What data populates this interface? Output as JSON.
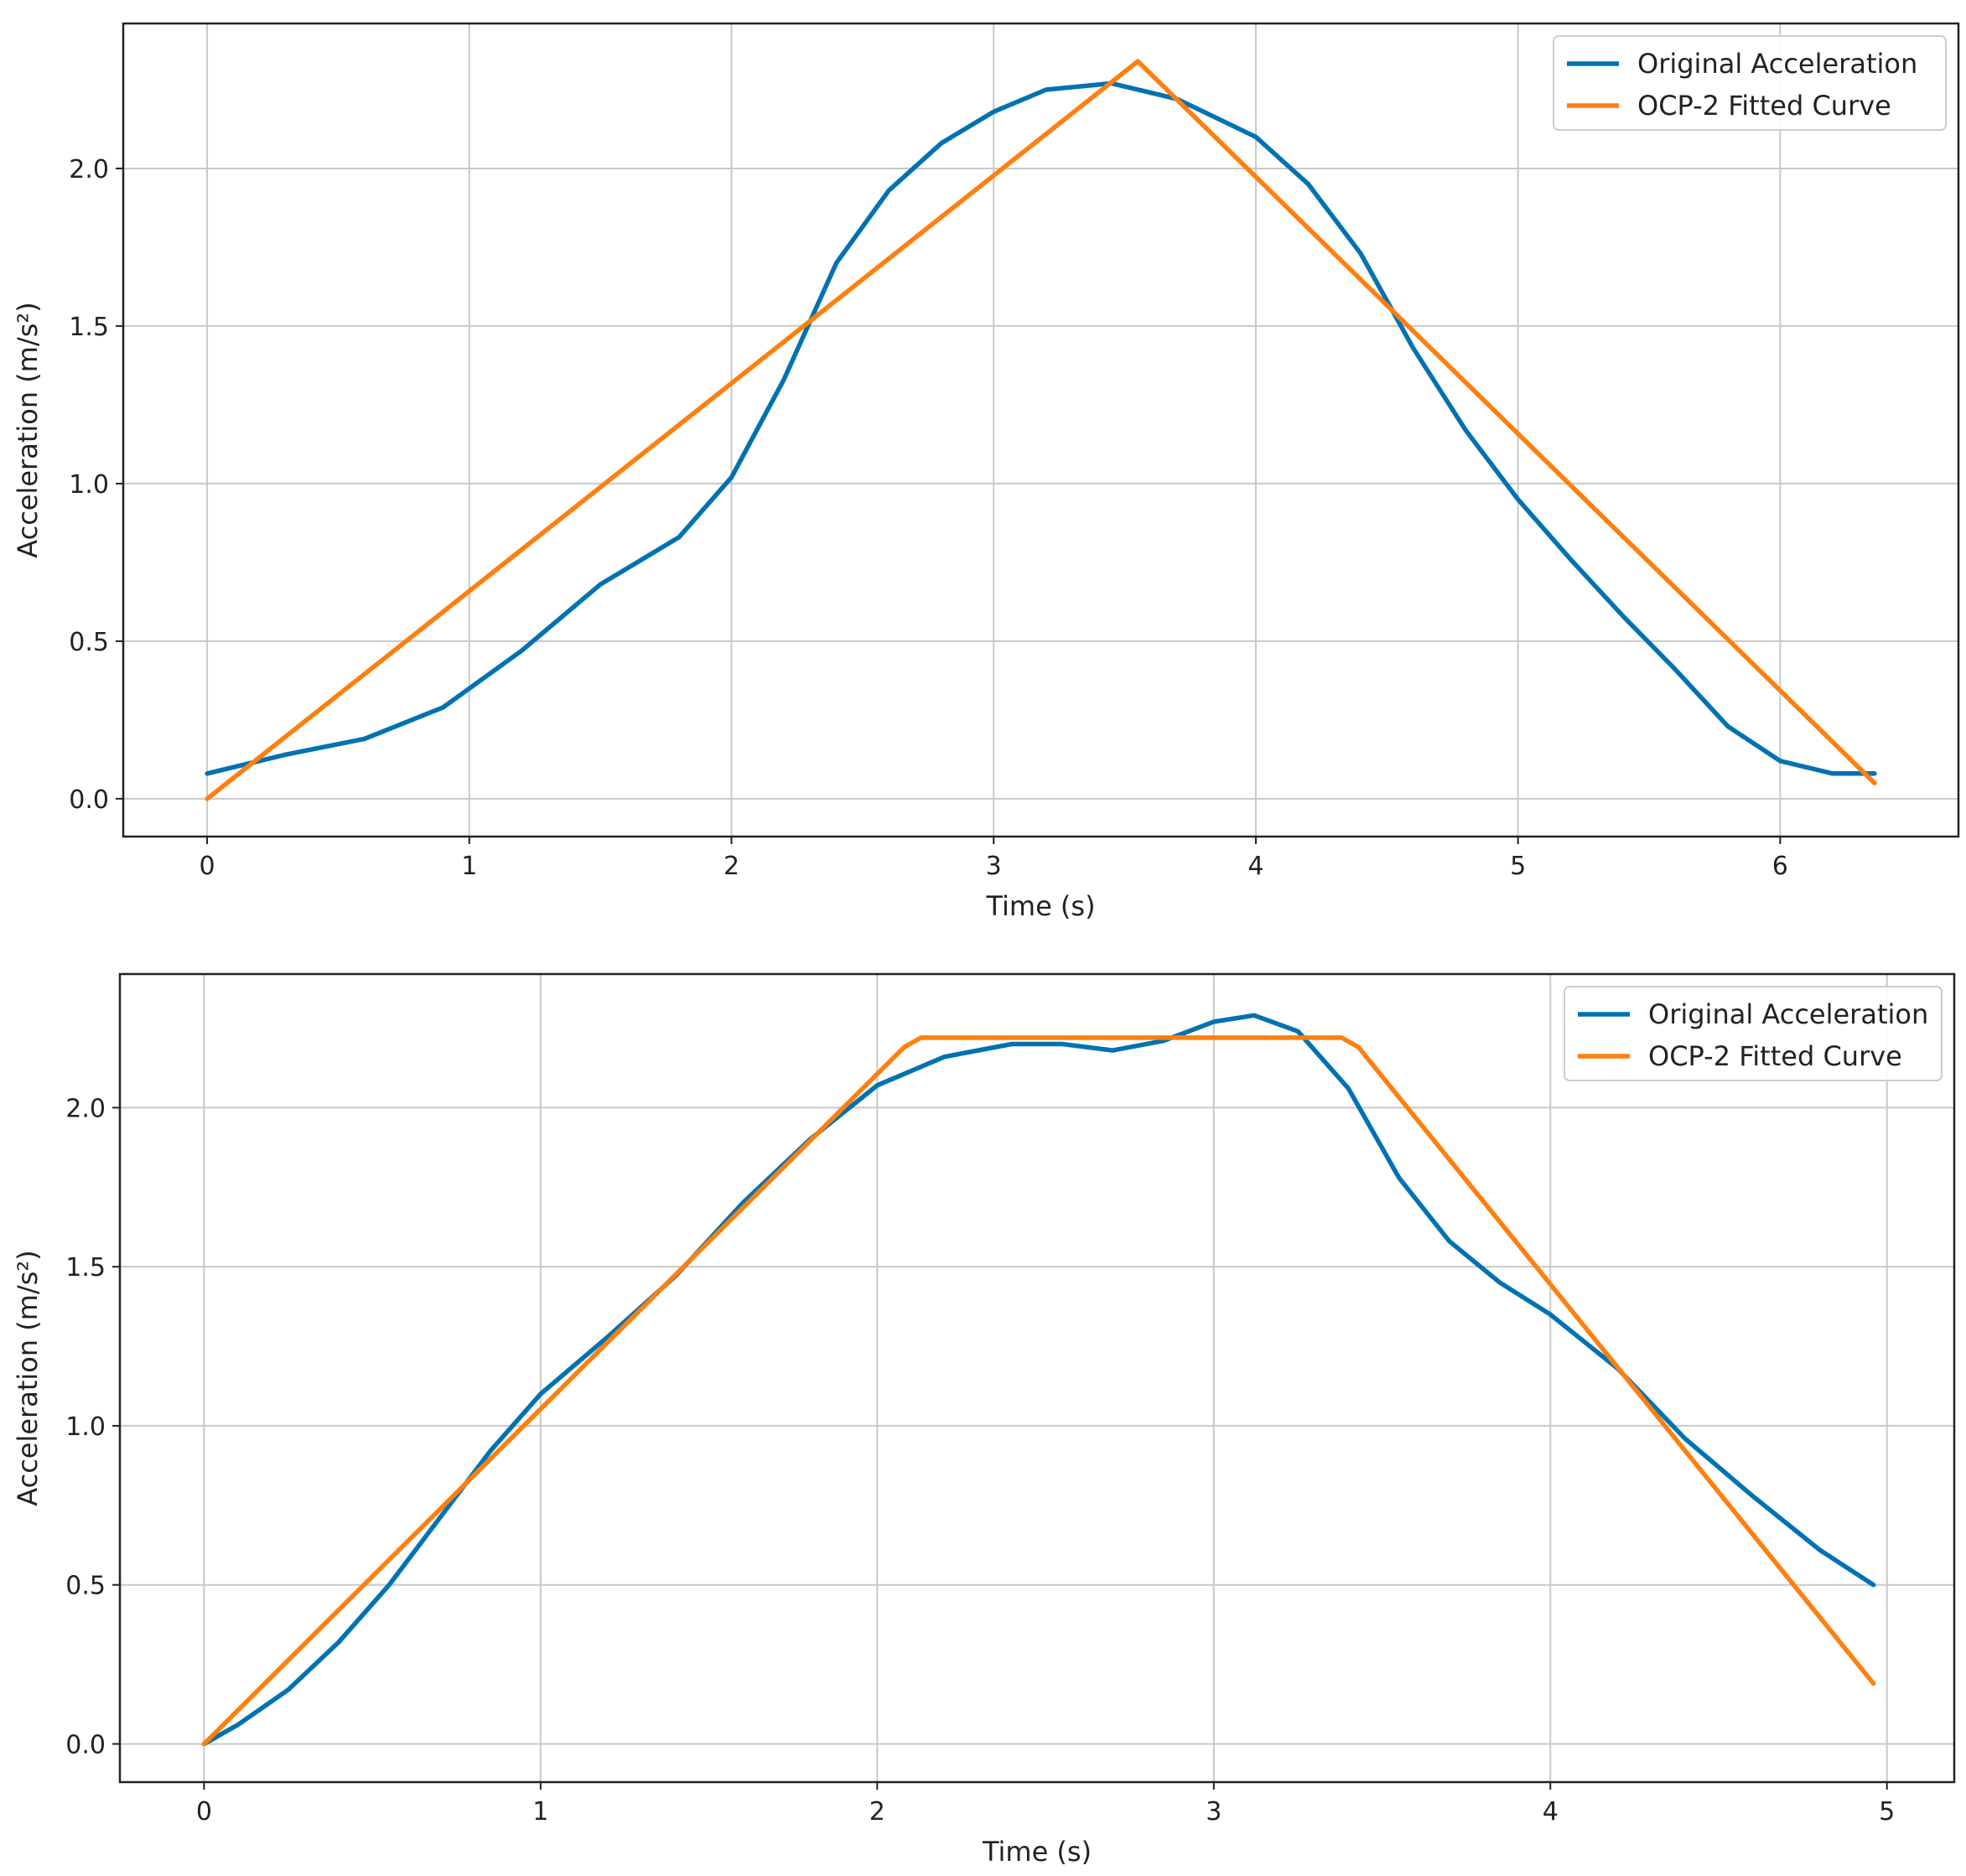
{
  "chart_data": [
    {
      "type": "line",
      "title": "",
      "xlabel": "Time (s)",
      "ylabel": "Acceleration (m/s²)",
      "xlim": [
        -0.32,
        6.68
      ],
      "ylim": [
        -0.12,
        2.46
      ],
      "xticks": [
        0,
        1,
        2,
        3,
        4,
        5,
        6
      ],
      "xtick_labels": [
        "0",
        "1",
        "2",
        "3",
        "4",
        "5",
        "6"
      ],
      "yticks": [
        0.0,
        0.5,
        1.0,
        1.5,
        2.0
      ],
      "ytick_labels": [
        "0.0",
        "0.5",
        "1.0",
        "1.5",
        "2.0"
      ],
      "grid": true,
      "legend_position": "top-right",
      "series": [
        {
          "name": "Original Acceleration",
          "color": "#0072b2",
          "x": [
            0,
            0.3,
            0.6,
            0.9,
            1.2,
            1.5,
            1.8,
            2.0,
            2.2,
            2.4,
            2.6,
            2.8,
            3.0,
            3.2,
            3.45,
            3.7,
            4.0,
            4.2,
            4.4,
            4.6,
            4.8,
            5.0,
            5.2,
            5.4,
            5.6,
            5.8,
            6.0,
            6.2,
            6.36
          ],
          "y": [
            0.08,
            0.14,
            0.19,
            0.29,
            0.47,
            0.68,
            0.83,
            1.02,
            1.33,
            1.7,
            1.93,
            2.08,
            2.18,
            2.25,
            2.27,
            2.22,
            2.1,
            1.95,
            1.73,
            1.43,
            1.17,
            0.95,
            0.76,
            0.58,
            0.41,
            0.23,
            0.12,
            0.08,
            0.08
          ]
        },
        {
          "name": "OCP-2 Fitted Curve",
          "color": "#ff7f0e",
          "x": [
            0,
            3.55,
            6.36
          ],
          "y": [
            0.0,
            2.34,
            0.05
          ]
        }
      ]
    },
    {
      "type": "line",
      "title": "",
      "xlabel": "Time (s)",
      "ylabel": "Acceleration (m/s²)",
      "xlim": [
        -0.25,
        5.2
      ],
      "ylim": [
        -0.12,
        2.42
      ],
      "xticks": [
        0,
        1,
        2,
        3,
        4,
        5
      ],
      "xtick_labels": [
        "0",
        "1",
        "2",
        "3",
        "4",
        "5"
      ],
      "yticks": [
        0.0,
        0.5,
        1.0,
        1.5,
        2.0
      ],
      "ytick_labels": [
        "0.0",
        "0.5",
        "1.0",
        "1.5",
        "2.0"
      ],
      "grid": true,
      "legend_position": "top-right",
      "series": [
        {
          "name": "Original Acceleration",
          "color": "#0072b2",
          "x": [
            0,
            0.1,
            0.25,
            0.4,
            0.55,
            0.7,
            0.85,
            1.0,
            1.2,
            1.4,
            1.6,
            1.8,
            2.0,
            2.2,
            2.4,
            2.55,
            2.7,
            2.85,
            3.0,
            3.12,
            3.25,
            3.4,
            3.55,
            3.7,
            3.85,
            4.0,
            4.2,
            4.4,
            4.6,
            4.8,
            4.96
          ],
          "y": [
            0.0,
            0.06,
            0.17,
            0.32,
            0.5,
            0.71,
            0.92,
            1.1,
            1.28,
            1.47,
            1.7,
            1.9,
            2.07,
            2.16,
            2.2,
            2.2,
            2.18,
            2.21,
            2.27,
            2.29,
            2.24,
            2.06,
            1.78,
            1.58,
            1.45,
            1.35,
            1.18,
            0.96,
            0.78,
            0.61,
            0.5
          ]
        },
        {
          "name": "OCP-2 Fitted Curve",
          "color": "#ff7f0e",
          "x": [
            0,
            2.08,
            2.13,
            3.38,
            3.43,
            4.96
          ],
          "y": [
            0.0,
            2.19,
            2.22,
            2.22,
            2.19,
            0.19
          ]
        }
      ]
    }
  ]
}
